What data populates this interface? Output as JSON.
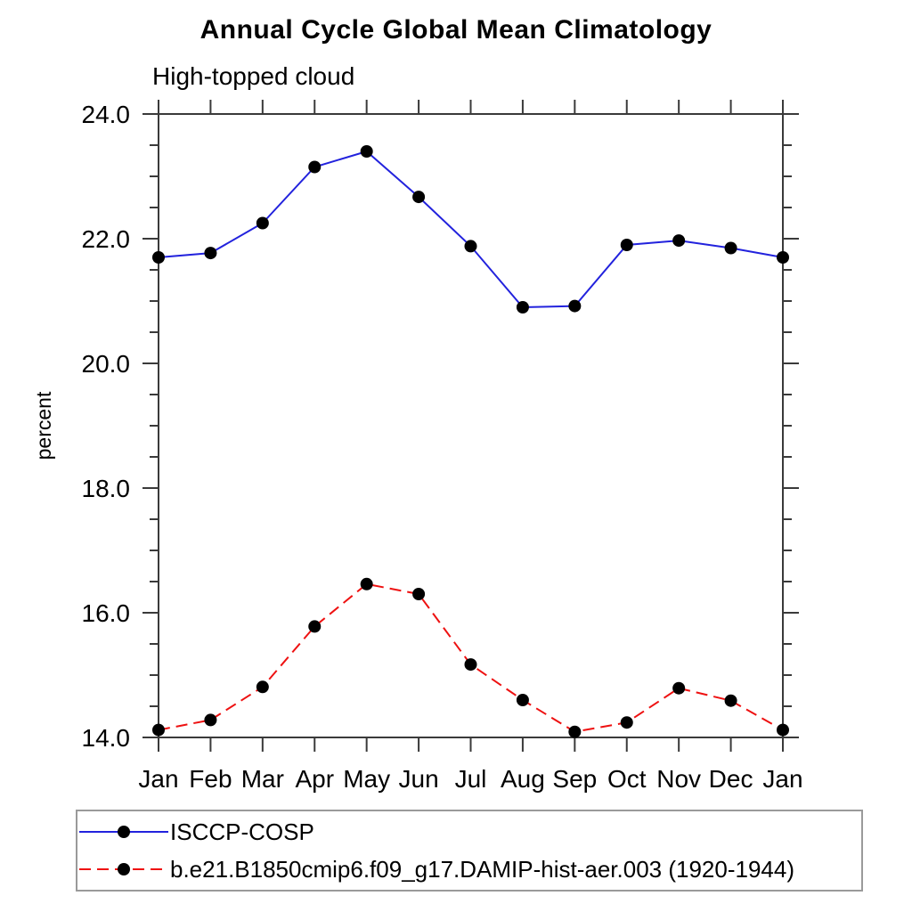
{
  "header": {
    "title": "Annual Cycle Global Mean Climatology",
    "subtitle": "High-topped cloud"
  },
  "axes": {
    "ylabel": "percent",
    "y_major_tick_labels": [
      "14.0",
      "16.0",
      "18.0",
      "20.0",
      "22.0",
      "24.0"
    ],
    "x_tick_labels": [
      "Jan",
      "Feb",
      "Mar",
      "Apr",
      "May",
      "Jun",
      "Jul",
      "Aug",
      "Sep",
      "Oct",
      "Nov",
      "Dec",
      "Jan"
    ]
  },
  "colors": {
    "series1": "#2222dd",
    "series2": "#ee1111",
    "marker": "#000000",
    "axis": "#3a3a3a",
    "text": "#000000",
    "legend_border": "#9a9a9a"
  },
  "legend": {
    "items": [
      {
        "label": "ISCCP-COSP",
        "line_style": "solid",
        "color": "#2222dd"
      },
      {
        "label": "b.e21.B1850cmip6.f09_g17.DAMIP-hist-aer.003 (1920-1944)",
        "line_style": "dashed",
        "color": "#ee1111"
      }
    ]
  },
  "chart_data": {
    "type": "line",
    "title": "Annual Cycle Global Mean Climatology",
    "subtitle": "High-topped cloud",
    "xlabel": "",
    "ylabel": "percent",
    "categories": [
      "Jan",
      "Feb",
      "Mar",
      "Apr",
      "May",
      "Jun",
      "Jul",
      "Aug",
      "Sep",
      "Oct",
      "Nov",
      "Dec",
      "Jan"
    ],
    "ylim": [
      14.0,
      24.0
    ],
    "ytick_major_interval": 2.0,
    "ytick_minor_interval": 0.5,
    "grid": false,
    "legend_position": "bottom-left",
    "marker": "filled-circle",
    "series": [
      {
        "name": "ISCCP-COSP",
        "color": "#2222dd",
        "line_style": "solid",
        "values": [
          21.7,
          21.77,
          22.25,
          23.15,
          23.4,
          22.67,
          21.88,
          20.9,
          20.92,
          21.9,
          21.97,
          21.85,
          21.7
        ]
      },
      {
        "name": "b.e21.B1850cmip6.f09_g17.DAMIP-hist-aer.003 (1920-1944)",
        "color": "#ee1111",
        "line_style": "dashed",
        "values": [
          14.12,
          14.28,
          14.81,
          15.78,
          16.46,
          16.3,
          15.17,
          14.6,
          14.09,
          14.24,
          14.79,
          14.59,
          14.12
        ]
      }
    ]
  }
}
